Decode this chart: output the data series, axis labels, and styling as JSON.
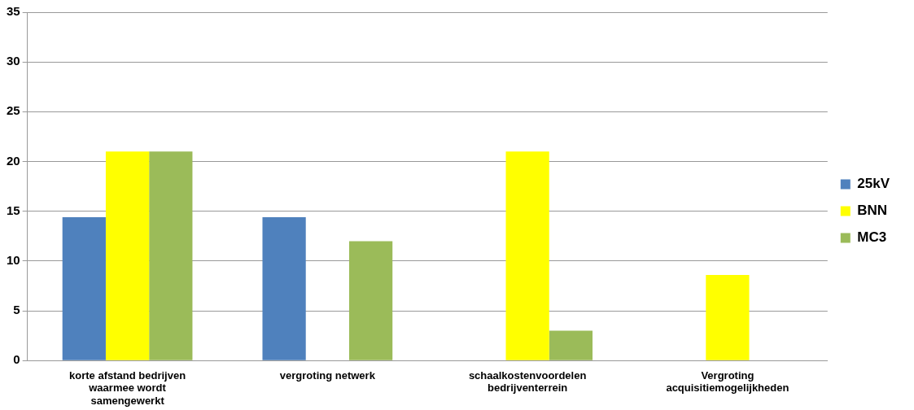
{
  "chart_data": {
    "type": "bar",
    "categories": [
      "korte afstand bedrijven waarmee wordt samengewerkt",
      "vergroting netwerk",
      "schaalkostenvoordelen bedrijventerrein",
      "Vergroting acquisitiemogelijkheden"
    ],
    "series": [
      {
        "name": "25kV",
        "color": "#4f81bd",
        "values": [
          14.4,
          14.4,
          0,
          0
        ]
      },
      {
        "name": "BNN",
        "color": "#ffff00",
        "values": [
          21,
          0,
          21,
          8.6
        ]
      },
      {
        "name": "MC3",
        "color": "#9bbb59",
        "values": [
          21,
          12,
          3,
          0
        ]
      }
    ],
    "ylim": [
      0,
      35
    ],
    "yticks": [
      0,
      5,
      10,
      15,
      20,
      25,
      30,
      35
    ],
    "grid": "y",
    "legend": "right"
  }
}
